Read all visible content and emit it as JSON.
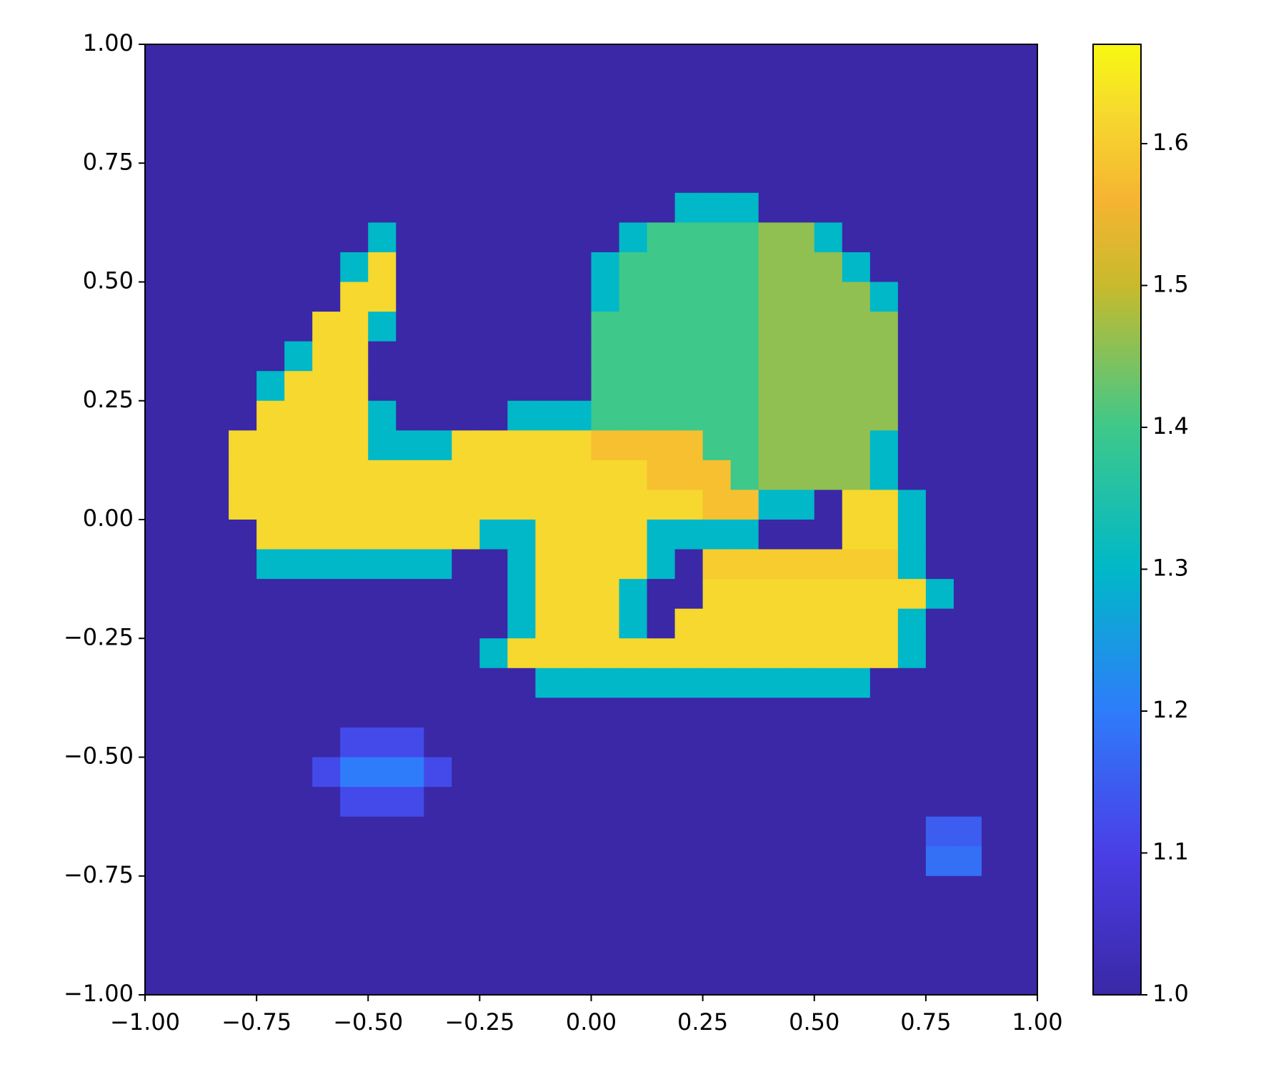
{
  "chart_data": {
    "type": "heatmap",
    "xlim": [
      -1,
      1
    ],
    "ylim": [
      -1,
      1
    ],
    "xticks": [
      {
        "value": -1,
        "label": "−1.00"
      },
      {
        "value": -0.75,
        "label": "−0.75"
      },
      {
        "value": -0.5,
        "label": "−0.50"
      },
      {
        "value": -0.25,
        "label": "−0.25"
      },
      {
        "value": 0,
        "label": "0.00"
      },
      {
        "value": 0.25,
        "label": "0.25"
      },
      {
        "value": 0.5,
        "label": "0.50"
      },
      {
        "value": 0.75,
        "label": "0.75"
      },
      {
        "value": 1,
        "label": "1.00"
      }
    ],
    "yticks": [
      {
        "value": -1,
        "label": "−1.00"
      },
      {
        "value": -0.75,
        "label": "−0.75"
      },
      {
        "value": -0.5,
        "label": "−0.50"
      },
      {
        "value": -0.25,
        "label": "−0.25"
      },
      {
        "value": 0,
        "label": "0.00"
      },
      {
        "value": 0.25,
        "label": "0.25"
      },
      {
        "value": 0.5,
        "label": "0.50"
      },
      {
        "value": 0.75,
        "label": "0.75"
      },
      {
        "value": 1,
        "label": "1.00"
      }
    ],
    "clim": [
      1,
      1.67
    ],
    "cticks": [
      {
        "value": 1,
        "label": "1.0"
      },
      1.1,
      1.2,
      1.3,
      1.4,
      1.5,
      1.6
    ],
    "colormap": [
      {
        "value": 1,
        "color": "#3a28a6"
      },
      {
        "value": 1.1,
        "color": "#4a3ee6"
      },
      {
        "value": 1.2,
        "color": "#2e7cfa"
      },
      {
        "value": 1.3,
        "color": "#00b8c8"
      },
      {
        "value": 1.4,
        "color": "#3ec88a"
      },
      {
        "value": 1.5,
        "color": "#c8ba2c"
      },
      {
        "value": 1.56,
        "color": "#f6b432"
      },
      {
        "value": 1.62,
        "color": "#f6d82e"
      },
      {
        "value": 1.67,
        "color": "#f8f812"
      }
    ],
    "z": [
      [
        1,
        1,
        1,
        1,
        1,
        1,
        1,
        1,
        1,
        1,
        1,
        1,
        1,
        1,
        1,
        1,
        1,
        1,
        1,
        1,
        1,
        1,
        1,
        1,
        1,
        1,
        1,
        1,
        1,
        1,
        1,
        1
      ],
      [
        1,
        1,
        1,
        1,
        1,
        1,
        1,
        1,
        1,
        1,
        1,
        1,
        1,
        1,
        1,
        1,
        1,
        1,
        1,
        1,
        1,
        1,
        1,
        1,
        1,
        1,
        1,
        1,
        1,
        1,
        1,
        1
      ],
      [
        1,
        1,
        1,
        1,
        1,
        1,
        1,
        1,
        1,
        1,
        1,
        1,
        1,
        1,
        1,
        1,
        1,
        1,
        1,
        1,
        1,
        1,
        1,
        1,
        1,
        1,
        1,
        1,
        1,
        1,
        1,
        1
      ],
      [
        1,
        1,
        1,
        1,
        1,
        1,
        1,
        1,
        1,
        1,
        1,
        1,
        1,
        1,
        1,
        1,
        1,
        1,
        1,
        1,
        1,
        1,
        1,
        1,
        1,
        1,
        1,
        1,
        1,
        1,
        1,
        1
      ],
      [
        1,
        1,
        1,
        1,
        1,
        1,
        1,
        1,
        1,
        1,
        1,
        1,
        1,
        1,
        1,
        1,
        1,
        1,
        1,
        1,
        1,
        1,
        1,
        1,
        1,
        1,
        1,
        1,
        1,
        1,
        1,
        1
      ],
      [
        1,
        1,
        1,
        1,
        1,
        1,
        1,
        1,
        1,
        1,
        1,
        1,
        1,
        1,
        1,
        1,
        1,
        1,
        1,
        1.3,
        1.3,
        1.3,
        1,
        1,
        1,
        1,
        1,
        1,
        1,
        1,
        1,
        1
      ],
      [
        1,
        1,
        1,
        1,
        1,
        1,
        1,
        1,
        1.3,
        1,
        1,
        1,
        1,
        1,
        1,
        1,
        1,
        1.3,
        1.4,
        1.4,
        1.4,
        1.4,
        1.46,
        1.46,
        1.3,
        1,
        1,
        1,
        1,
        1,
        1,
        1
      ],
      [
        1,
        1,
        1,
        1,
        1,
        1,
        1,
        1.3,
        1.62,
        1,
        1,
        1,
        1,
        1,
        1,
        1,
        1.3,
        1.4,
        1.4,
        1.4,
        1.4,
        1.4,
        1.46,
        1.46,
        1.46,
        1.3,
        1,
        1,
        1,
        1,
        1,
        1
      ],
      [
        1,
        1,
        1,
        1,
        1,
        1,
        1,
        1.62,
        1.62,
        1,
        1,
        1,
        1,
        1,
        1,
        1,
        1.3,
        1.4,
        1.4,
        1.4,
        1.4,
        1.4,
        1.46,
        1.46,
        1.46,
        1.46,
        1.3,
        1,
        1,
        1,
        1,
        1
      ],
      [
        1,
        1,
        1,
        1,
        1,
        1,
        1.62,
        1.62,
        1.3,
        1,
        1,
        1,
        1,
        1,
        1,
        1,
        1.4,
        1.4,
        1.4,
        1.4,
        1.4,
        1.4,
        1.46,
        1.46,
        1.46,
        1.46,
        1.46,
        1,
        1,
        1,
        1,
        1
      ],
      [
        1,
        1,
        1,
        1,
        1,
        1.3,
        1.62,
        1.62,
        1,
        1,
        1,
        1,
        1,
        1,
        1,
        1,
        1.4,
        1.4,
        1.4,
        1.4,
        1.4,
        1.4,
        1.46,
        1.46,
        1.46,
        1.46,
        1.46,
        1,
        1,
        1,
        1,
        1
      ],
      [
        1,
        1,
        1,
        1,
        1.3,
        1.62,
        1.62,
        1.62,
        1,
        1,
        1,
        1,
        1,
        1,
        1,
        1,
        1.4,
        1.4,
        1.4,
        1.4,
        1.4,
        1.4,
        1.46,
        1.46,
        1.46,
        1.46,
        1.46,
        1,
        1,
        1,
        1,
        1
      ],
      [
        1,
        1,
        1,
        1,
        1.62,
        1.62,
        1.62,
        1.62,
        1.3,
        1,
        1,
        1,
        1,
        1.3,
        1.3,
        1.3,
        1.4,
        1.4,
        1.4,
        1.4,
        1.4,
        1.4,
        1.46,
        1.46,
        1.46,
        1.46,
        1.46,
        1,
        1,
        1,
        1,
        1
      ],
      [
        1,
        1,
        1,
        1.62,
        1.62,
        1.62,
        1.62,
        1.62,
        1.3,
        1.3,
        1.3,
        1.62,
        1.62,
        1.62,
        1.62,
        1.62,
        1.58,
        1.58,
        1.58,
        1.58,
        1.4,
        1.4,
        1.46,
        1.46,
        1.46,
        1.46,
        1.3,
        1,
        1,
        1,
        1,
        1
      ],
      [
        1,
        1,
        1,
        1.62,
        1.62,
        1.62,
        1.62,
        1.62,
        1.62,
        1.62,
        1.62,
        1.62,
        1.62,
        1.62,
        1.62,
        1.62,
        1.62,
        1.62,
        1.58,
        1.58,
        1.58,
        1.4,
        1.46,
        1.46,
        1.46,
        1.46,
        1.3,
        1,
        1,
        1,
        1,
        1
      ],
      [
        1,
        1,
        1,
        1.62,
        1.62,
        1.62,
        1.62,
        1.62,
        1.62,
        1.62,
        1.62,
        1.62,
        1.62,
        1.62,
        1.62,
        1.62,
        1.62,
        1.62,
        1.62,
        1.62,
        1.58,
        1.58,
        1.3,
        1.3,
        1,
        1.62,
        1.62,
        1.3,
        1,
        1,
        1,
        1
      ],
      [
        1,
        1,
        1,
        1,
        1.62,
        1.62,
        1.62,
        1.62,
        1.62,
        1.62,
        1.62,
        1.62,
        1.3,
        1.3,
        1.62,
        1.62,
        1.62,
        1.62,
        1.3,
        1.3,
        1.3,
        1.3,
        1,
        1,
        1,
        1.62,
        1.62,
        1.3,
        1,
        1,
        1,
        1
      ],
      [
        1,
        1,
        1,
        1,
        1.3,
        1.3,
        1.3,
        1.3,
        1.3,
        1.3,
        1.3,
        1,
        1,
        1.3,
        1.62,
        1.62,
        1.62,
        1.62,
        1.3,
        1,
        1.6,
        1.6,
        1.6,
        1.6,
        1.6,
        1.6,
        1.6,
        1.3,
        1,
        1,
        1,
        1
      ],
      [
        1,
        1,
        1,
        1,
        1,
        1,
        1,
        1,
        1,
        1,
        1,
        1,
        1,
        1.3,
        1.62,
        1.62,
        1.62,
        1.3,
        1,
        1,
        1.62,
        1.62,
        1.62,
        1.62,
        1.62,
        1.62,
        1.62,
        1.62,
        1.3,
        1,
        1,
        1
      ],
      [
        1,
        1,
        1,
        1,
        1,
        1,
        1,
        1,
        1,
        1,
        1,
        1,
        1,
        1.3,
        1.62,
        1.62,
        1.62,
        1.3,
        1,
        1.62,
        1.62,
        1.62,
        1.62,
        1.62,
        1.62,
        1.62,
        1.62,
        1.3,
        1,
        1,
        1,
        1
      ],
      [
        1,
        1,
        1,
        1,
        1,
        1,
        1,
        1,
        1,
        1,
        1,
        1,
        1.3,
        1.62,
        1.62,
        1.62,
        1.62,
        1.62,
        1.62,
        1.62,
        1.62,
        1.62,
        1.62,
        1.62,
        1.62,
        1.62,
        1.62,
        1.3,
        1,
        1,
        1,
        1
      ],
      [
        1,
        1,
        1,
        1,
        1,
        1,
        1,
        1,
        1,
        1,
        1,
        1,
        1,
        1,
        1.3,
        1.3,
        1.3,
        1.3,
        1.3,
        1.3,
        1.3,
        1.3,
        1.3,
        1.3,
        1.3,
        1.3,
        1,
        1,
        1,
        1,
        1,
        1
      ],
      [
        1,
        1,
        1,
        1,
        1,
        1,
        1,
        1,
        1,
        1,
        1,
        1,
        1,
        1,
        1,
        1,
        1,
        1,
        1,
        1,
        1,
        1,
        1,
        1,
        1,
        1,
        1,
        1,
        1,
        1,
        1,
        1
      ],
      [
        1,
        1,
        1,
        1,
        1,
        1,
        1,
        1.12,
        1.12,
        1.12,
        1,
        1,
        1,
        1,
        1,
        1,
        1,
        1,
        1,
        1,
        1,
        1,
        1,
        1,
        1,
        1,
        1,
        1,
        1,
        1,
        1,
        1
      ],
      [
        1,
        1,
        1,
        1,
        1,
        1,
        1.12,
        1.2,
        1.2,
        1.2,
        1.12,
        1,
        1,
        1,
        1,
        1,
        1,
        1,
        1,
        1,
        1,
        1,
        1,
        1,
        1,
        1,
        1,
        1,
        1,
        1,
        1,
        1
      ],
      [
        1,
        1,
        1,
        1,
        1,
        1,
        1,
        1.12,
        1.12,
        1.12,
        1,
        1,
        1,
        1,
        1,
        1,
        1,
        1,
        1,
        1,
        1,
        1,
        1,
        1,
        1,
        1,
        1,
        1,
        1,
        1,
        1,
        1
      ],
      [
        1,
        1,
        1,
        1,
        1,
        1,
        1,
        1,
        1,
        1,
        1,
        1,
        1,
        1,
        1,
        1,
        1,
        1,
        1,
        1,
        1,
        1,
        1,
        1,
        1,
        1,
        1,
        1,
        1.15,
        1.15,
        1,
        1
      ],
      [
        1,
        1,
        1,
        1,
        1,
        1,
        1,
        1,
        1,
        1,
        1,
        1,
        1,
        1,
        1,
        1,
        1,
        1,
        1,
        1,
        1,
        1,
        1,
        1,
        1,
        1,
        1,
        1,
        1.18,
        1.18,
        1,
        1
      ],
      [
        1,
        1,
        1,
        1,
        1,
        1,
        1,
        1,
        1,
        1,
        1,
        1,
        1,
        1,
        1,
        1,
        1,
        1,
        1,
        1,
        1,
        1,
        1,
        1,
        1,
        1,
        1,
        1,
        1,
        1,
        1,
        1
      ],
      [
        1,
        1,
        1,
        1,
        1,
        1,
        1,
        1,
        1,
        1,
        1,
        1,
        1,
        1,
        1,
        1,
        1,
        1,
        1,
        1,
        1,
        1,
        1,
        1,
        1,
        1,
        1,
        1,
        1,
        1,
        1,
        1
      ],
      [
        1,
        1,
        1,
        1,
        1,
        1,
        1,
        1,
        1,
        1,
        1,
        1,
        1,
        1,
        1,
        1,
        1,
        1,
        1,
        1,
        1,
        1,
        1,
        1,
        1,
        1,
        1,
        1,
        1,
        1,
        1,
        1
      ],
      [
        1,
        1,
        1,
        1,
        1,
        1,
        1,
        1,
        1,
        1,
        1,
        1,
        1,
        1,
        1,
        1,
        1,
        1,
        1,
        1,
        1,
        1,
        1,
        1,
        1,
        1,
        1,
        1,
        1,
        1,
        1,
        1
      ]
    ]
  }
}
